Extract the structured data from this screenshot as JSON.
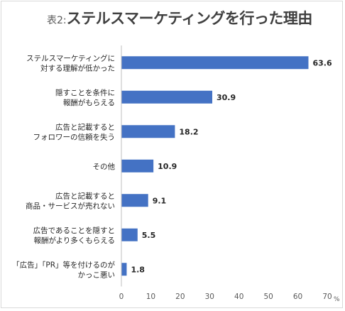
{
  "chart_data": {
    "type": "bar",
    "orientation": "horizontal",
    "title_prefix": "表2:",
    "title": "ステルスマーケティングを行った理由",
    "unit": "%",
    "categories": [
      [
        "ステルスマーケティングに",
        "対する理解が低かった"
      ],
      [
        "隠すことを条件に",
        "報酬がもらえる"
      ],
      [
        "広告と記載すると",
        "フォロワーの信頼を失う"
      ],
      [
        "その他"
      ],
      [
        "広告と記載すると",
        "商品・サービスが売れない"
      ],
      [
        "広告であることを隠すと",
        "報酬がより多くもらえる"
      ],
      [
        "「広告」「PR」等を付けるのが",
        "かっこ悪い"
      ]
    ],
    "values": [
      63.6,
      30.9,
      18.2,
      10.9,
      9.1,
      5.5,
      1.8
    ],
    "value_labels": [
      "63.6",
      "30.9",
      "18.2",
      "10.9",
      "9.1",
      "5.5",
      "1.8"
    ],
    "xlim": [
      0,
      70
    ],
    "xticks": [
      "0",
      "10",
      "20",
      "30",
      "40",
      "50",
      "60",
      "70"
    ],
    "grid": false,
    "bar_color": "#4472c4"
  }
}
